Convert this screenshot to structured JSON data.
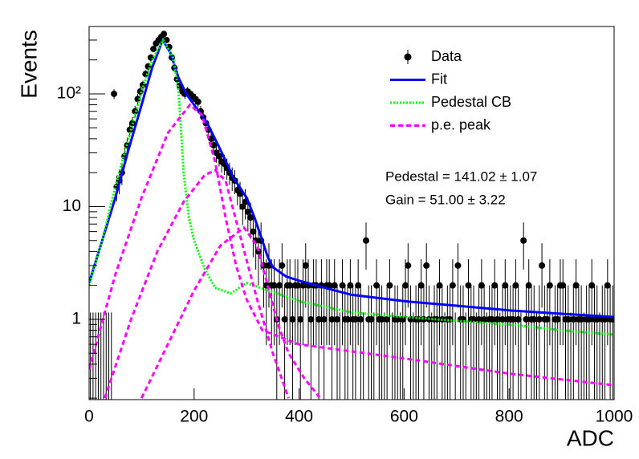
{
  "chart_data": {
    "type": "scatter",
    "xlabel": "ADC",
    "ylabel": "Events",
    "xlim": [
      0,
      1000
    ],
    "xticks": [
      0,
      200,
      400,
      600,
      800,
      1000
    ],
    "ylim": [
      0.194,
      396
    ],
    "log_y": true,
    "yticks": [
      1,
      10,
      {
        "value": 100,
        "label": "10²"
      }
    ],
    "yminorticks": [
      0.2,
      0.3,
      0.4,
      0.5,
      0.6,
      0.7,
      0.8,
      0.9,
      2,
      3,
      4,
      5,
      6,
      7,
      8,
      9,
      20,
      30,
      40,
      50,
      60,
      70,
      80,
      90,
      200,
      300
    ],
    "legend": "top-right",
    "annotations": [
      "Pedestal = 141.02 ± 1.07",
      "Gain = 51.00 ± 3.22"
    ],
    "series": [
      {
        "name": "Data",
        "color": "#000000",
        "style": "points",
        "x": [
          2.5,
          7.5,
          12.5,
          17.5,
          22.5,
          27.5,
          32.5,
          37.5,
          42.5,
          47.5,
          52.5,
          57.5,
          62.5,
          67.5,
          72.5,
          77.5,
          82.5,
          87.5,
          92.5,
          97.5,
          102.5,
          107.5,
          112.5,
          117.5,
          122.5,
          127.5,
          132.5,
          137.5,
          142.5,
          147.5,
          152.5,
          157.5,
          162.5,
          167.5,
          172.5,
          177.5,
          182.5,
          187.5,
          192.5,
          197.5,
          202.5,
          207.5,
          212.5,
          217.5,
          222.5,
          227.5,
          232.5,
          237.5,
          242.5,
          247.5,
          252.5,
          257.5,
          262.5,
          267.5,
          272.5,
          277.5,
          282.5,
          287.5,
          292.5,
          297.5,
          302.5,
          307.5,
          312.5,
          317.5,
          322.5,
          327.5,
          332.5,
          337.5,
          342.5,
          347.5,
          352.5,
          357.5,
          362.5,
          367.5,
          372.5,
          377.5,
          382.5,
          387.5,
          392.5,
          397.5,
          402.5,
          407.5,
          412.5,
          417.5,
          422.5,
          427.5,
          432.5,
          437.5,
          442.5,
          447.5,
          452.5,
          457.5,
          462.5,
          467.5,
          472.5,
          477.5,
          482.5,
          487.5,
          492.5,
          497.5,
          502.5,
          507.5,
          512.5,
          517.5,
          522.5,
          527.5,
          532.5,
          537.5,
          542.5,
          547.5,
          552.5,
          557.5,
          562.5,
          567.5,
          572.5,
          577.5,
          582.5,
          587.5,
          592.5,
          597.5,
          602.5,
          607.5,
          612.5,
          617.5,
          622.5,
          627.5,
          632.5,
          637.5,
          642.5,
          647.5,
          652.5,
          657.5,
          662.5,
          667.5,
          672.5,
          677.5,
          682.5,
          687.5,
          692.5,
          697.5,
          702.5,
          707.5,
          712.5,
          717.5,
          722.5,
          727.5,
          732.5,
          737.5,
          742.5,
          747.5,
          752.5,
          757.5,
          762.5,
          767.5,
          772.5,
          777.5,
          782.5,
          787.5,
          792.5,
          797.5,
          802.5,
          807.5,
          812.5,
          817.5,
          822.5,
          827.5,
          832.5,
          837.5,
          842.5,
          847.5,
          852.5,
          857.5,
          862.5,
          867.5,
          872.5,
          877.5,
          882.5,
          887.5,
          892.5,
          897.5,
          902.5,
          907.5,
          912.5,
          917.5,
          922.5,
          927.5,
          932.5,
          937.5,
          942.5,
          947.5,
          952.5,
          957.5,
          962.5,
          967.5,
          972.5,
          977.5,
          982.5,
          987.5,
          992.5,
          997.5
        ],
        "values": [
          0,
          0,
          0,
          0,
          0,
          0,
          0,
          0,
          0,
          100,
          15,
          17,
          20,
          28,
          35,
          48,
          55,
          70,
          90,
          105,
          120,
          150,
          175,
          210,
          250,
          280,
          300,
          320,
          340,
          300,
          260,
          210,
          170,
          135,
          118,
          105,
          100,
          105,
          100,
          95,
          90,
          85,
          70,
          62,
          55,
          48,
          40,
          35,
          30,
          28,
          25,
          24,
          22,
          20,
          18,
          17,
          14,
          13,
          10,
          11,
          9,
          8,
          6,
          5,
          4,
          5,
          3,
          2,
          3,
          2,
          2,
          1,
          2,
          3,
          1,
          2,
          2,
          1,
          2,
          2,
          1,
          2,
          3,
          2,
          1,
          2,
          2,
          1,
          2,
          1,
          2,
          2,
          1,
          2,
          1,
          0,
          2,
          1,
          1,
          2,
          1,
          1,
          2,
          1,
          0,
          5,
          1,
          1,
          0,
          2,
          1,
          1,
          0,
          1,
          2,
          0,
          1,
          1,
          0,
          1,
          2,
          3,
          1,
          0,
          1,
          1,
          2,
          1,
          3,
          1,
          0,
          1,
          1,
          2,
          1,
          0,
          1,
          1,
          2,
          0,
          3,
          1,
          1,
          0,
          2,
          1,
          1,
          0,
          1,
          2,
          1,
          0,
          1,
          1,
          2,
          1,
          0,
          1,
          2,
          1,
          1,
          1,
          2,
          1,
          0,
          5,
          1,
          2,
          1,
          1,
          0,
          1,
          3,
          1,
          1,
          2,
          0,
          1,
          1,
          2,
          2,
          1,
          1,
          0,
          1,
          2,
          1,
          1,
          0,
          1,
          1,
          2,
          1,
          1,
          0,
          1,
          1,
          2,
          1,
          1
        ],
        "errors": [
          1.15,
          1.15,
          1.15,
          1.15,
          1.15,
          1.15,
          1.15,
          1.15,
          1.15,
          10,
          3.87,
          4.12,
          4.47,
          5.29,
          5.92,
          6.93,
          7.42,
          8.37,
          9.49,
          10.25,
          10.95,
          12.25,
          13.23,
          14.49,
          15.81,
          16.73,
          17.32,
          17.89,
          18.44,
          17.32,
          16.12,
          14.49,
          13.04,
          11.62,
          10.86,
          10.25,
          10,
          10.25,
          10,
          9.75,
          9.49,
          9.22,
          8.37,
          7.87,
          7.42,
          6.93,
          6.32,
          5.92,
          5.48,
          5.29,
          5,
          4.9,
          4.69,
          4.47,
          4.24,
          4.12,
          3.74,
          3.61,
          3.16,
          3.32,
          3,
          2.83,
          2.45,
          2.24,
          2,
          2.24,
          1.73,
          1.41,
          1.73,
          1.41,
          1.41,
          1,
          1.41,
          1.73,
          1,
          1.41,
          1.41,
          1,
          1.41,
          1.41,
          1,
          1.41,
          1.73,
          1.41,
          1,
          1.41,
          1.41,
          1,
          1.41,
          1,
          1.41,
          1.41,
          1,
          1.41,
          1,
          1.15,
          1.41,
          1,
          1,
          1.41,
          1,
          1,
          1.41,
          1,
          1.15,
          2.24,
          1,
          1,
          1.15,
          1.41,
          1,
          1,
          1.15,
          1,
          1.41,
          1.15,
          1,
          1,
          1.15,
          1,
          1.41,
          1.73,
          1,
          1.15,
          1,
          1,
          1.41,
          1,
          1.73,
          1,
          1.15,
          1,
          1,
          1.41,
          1,
          1.15,
          1,
          1,
          1.41,
          1.15,
          1.73,
          1,
          1,
          1.15,
          1.41,
          1,
          1,
          1.15,
          1,
          1.41,
          1,
          1.15,
          1,
          1,
          1.41,
          1,
          1.15,
          1,
          1.41,
          1,
          1,
          1,
          1.41,
          1,
          1.15,
          2.24,
          1,
          1.41,
          1,
          1,
          1.15,
          1,
          1.73,
          1,
          1,
          1.41,
          1.15,
          1,
          1,
          1.41,
          1.41,
          1,
          1,
          1.15,
          1,
          1.41,
          1,
          1,
          1.15,
          1,
          1,
          1.41,
          1,
          1,
          1.15,
          1,
          1,
          1.41,
          1,
          1
        ]
      },
      {
        "name": "Fit",
        "color": "#0000ff",
        "style": "solid",
        "curves": [
          {
            "x": [
              0,
              25,
              50,
              75,
              100,
              120,
              140,
              155,
              170,
              185,
              200,
              225,
              250,
              275,
              300,
              315,
              330,
              340,
              350,
              375,
              400,
              450,
              500,
              600,
              700,
              800,
              900,
              1000
            ],
            "values": [
              2.1,
              5,
              12,
              32,
              80,
              170,
              300,
              230,
              140,
              100,
              80,
              55,
              32,
              18,
              12,
              8,
              5,
              3.6,
              2.9,
              2.4,
              2.2,
              1.9,
              1.65,
              1.45,
              1.32,
              1.2,
              1.12,
              1.05
            ]
          }
        ]
      },
      {
        "name": "Pedestal CB",
        "color": "#00ff00",
        "style": "dotted",
        "curves": [
          {
            "x": [
              0,
              25,
              50,
              75,
              100,
              120,
              141,
              160,
              170,
              175,
              180,
              190,
              200,
              220,
              240,
              270,
              300,
              400,
              500,
              600,
              700,
              800,
              900,
              1000
            ],
            "values": [
              2,
              5,
              15,
              40,
              105,
              200,
              300,
              210,
              110,
              50,
              20,
              8,
              5,
              2.8,
              1.9,
              1.7,
              2.1,
              1.45,
              1.15,
              1.05,
              0.97,
              0.9,
              0.8,
              0.73
            ]
          }
        ]
      },
      {
        "name": "p.e. peak",
        "color": "#ff00ff",
        "style": "dashed",
        "curves": [
          {
            "x": [
              0,
              50,
              100,
              150,
              192,
              215,
              240,
              260,
              280,
              300,
              330,
              400,
              600,
              800,
              1000
            ],
            "values": [
              0.36,
              2.5,
              12,
              45,
              80,
              65,
              25,
              8,
              3,
              1.5,
              0.8,
              0.6,
              0.45,
              0.33,
              0.26
            ]
          },
          {
            "x": [
              30,
              80,
              130,
              180,
              220,
              240,
              260,
              290,
              320,
              350,
              380
            ],
            "values": [
              0.2,
              1,
              4,
              11,
              19,
              21,
              17,
              5,
              1.5,
              0.5,
              0.2
            ]
          },
          {
            "x": [
              100,
              150,
              200,
              250,
              295,
              320,
              340,
              360,
              380,
              410,
              440
            ],
            "values": [
              0.2,
              0.6,
              1.8,
              4.5,
              6.5,
              4.5,
              2,
              0.9,
              0.5,
              0.3,
              0.2
            ]
          }
        ]
      }
    ]
  }
}
